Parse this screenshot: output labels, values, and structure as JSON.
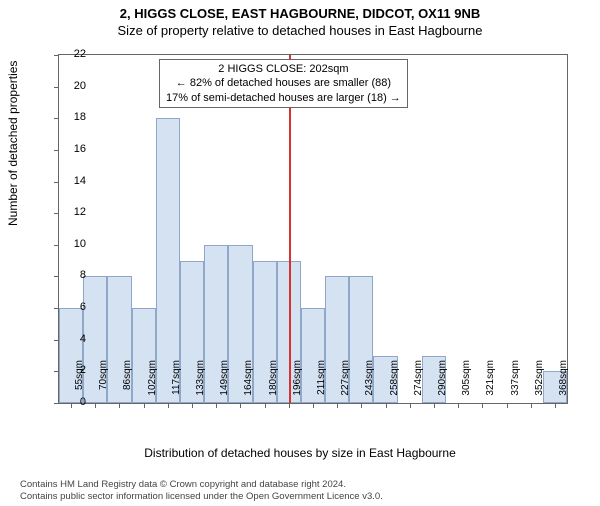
{
  "title_line1": "2, HIGGS CLOSE, EAST HAGBOURNE, DIDCOT, OX11 9NB",
  "title_line2": "Size of property relative to detached houses in East Hagbourne",
  "ylabel": "Number of detached properties",
  "xlabel": "Distribution of detached houses by size in East Hagbourne",
  "footer_line1": "Contains HM Land Registry data © Crown copyright and database right 2024.",
  "footer_line2": "Contains public sector information licensed under the Open Government Licence v3.0.",
  "annotation": {
    "line1": "2 HIGGS CLOSE: 202sqm",
    "line2": "← 82% of detached houses are smaller (88)",
    "line3": "17% of semi-detached houses are larger (18) →"
  },
  "chart": {
    "type": "histogram",
    "ylim": [
      0,
      22
    ],
    "ytick_step": 2,
    "xcategories": [
      "55sqm",
      "70sqm",
      "86sqm",
      "102sqm",
      "117sqm",
      "133sqm",
      "149sqm",
      "164sqm",
      "180sqm",
      "196sqm",
      "211sqm",
      "227sqm",
      "243sqm",
      "258sqm",
      "274sqm",
      "290sqm",
      "305sqm",
      "321sqm",
      "337sqm",
      "352sqm",
      "368sqm"
    ],
    "values": [
      6,
      8,
      8,
      6,
      18,
      9,
      10,
      10,
      9,
      9,
      6,
      8,
      8,
      3,
      0,
      3,
      0,
      0,
      0,
      0,
      2
    ],
    "bar_fill": "#d5e2f2",
    "bar_stroke": "#8fa8c9",
    "refline_x_index": 9.5,
    "refline_color": "#d93030",
    "background_color": "#ffffff",
    "border_color": "#666666",
    "title_fontsize": 13,
    "label_fontsize": 12,
    "tick_fontsize": 11
  }
}
